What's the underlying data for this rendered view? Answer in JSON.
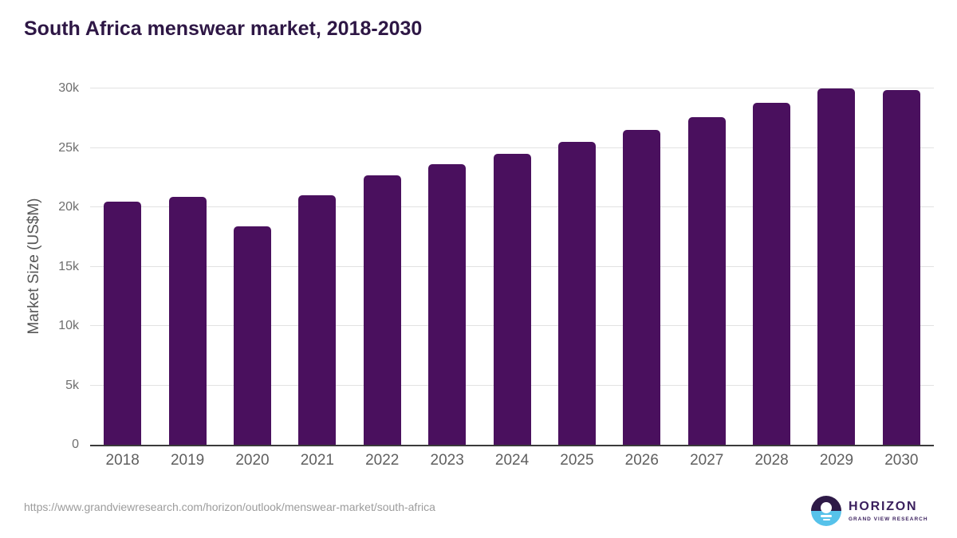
{
  "title": "South Africa menswear market, 2018-2030",
  "footer": {
    "source_url": "https://www.grandviewresearch.com/horizon/outlook/menswear-market/south-africa",
    "logo": {
      "brand": "HORIZON",
      "sub_brand": "GRAND VIEW RESEARCH"
    }
  },
  "colors": {
    "bar": "#4a105e",
    "title": "#2e1745",
    "grid": "#e2e2e2",
    "axis": "#3a3a3a",
    "tick": "#6f6f6f",
    "x_tick": "#5f5f5f",
    "axis_title": "#565656",
    "url": "#9c9c9c",
    "logo_purple": "#2e1a47",
    "logo_blue": "#56c2ea",
    "logo_text": "#3a1f5d"
  },
  "chart_data": {
    "type": "bar",
    "title": "South Africa menswear market, 2018-2030",
    "categories": [
      "2018",
      "2019",
      "2020",
      "2021",
      "2022",
      "2023",
      "2024",
      "2025",
      "2026",
      "2027",
      "2028",
      "2029",
      "2030"
    ],
    "values": [
      20500,
      20900,
      18400,
      21000,
      22700,
      23600,
      24500,
      25500,
      26500,
      27600,
      28800,
      30000,
      29900
    ],
    "unit": "US$M",
    "xlabel": "",
    "ylabel": "Market Size (US$M)",
    "ylim": [
      0,
      30000
    ],
    "yticks": {
      "values": [
        0,
        5000,
        10000,
        15000,
        20000,
        25000,
        30000
      ],
      "labels": [
        "0",
        "5k",
        "10k",
        "15k",
        "20k",
        "25k",
        "30k"
      ]
    },
    "grid": "horizontal",
    "legend": "none"
  }
}
